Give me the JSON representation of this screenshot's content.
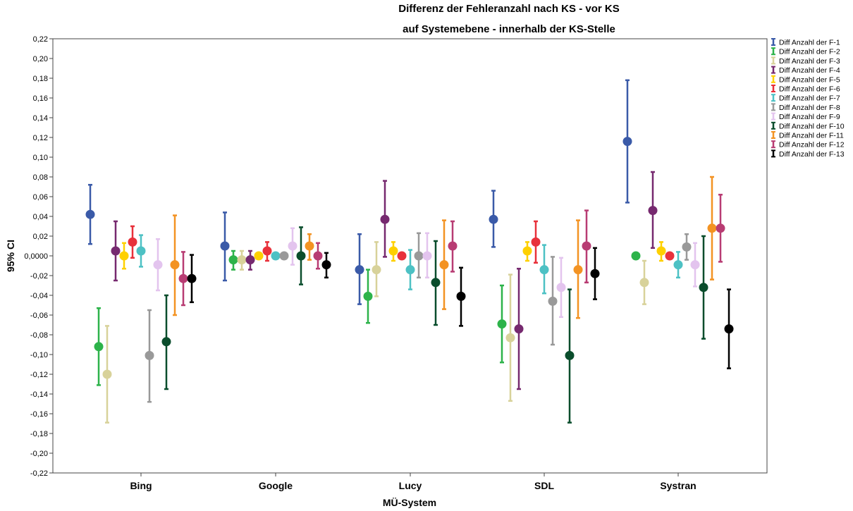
{
  "chart_data": {
    "type": "errorbar",
    "title": [
      "Differenz der Fehleranzahl nach KS - vor KS",
      "auf Systemebene - innerhalb der KS-Stelle"
    ],
    "xlabel": "MÜ-System",
    "ylabel": "95% CI",
    "ylim": [
      -0.22,
      0.22
    ],
    "y_ticks": [
      "0,22",
      "0,20",
      "0,18",
      "0,16",
      "0,14",
      "0,12",
      "0,10",
      "0,08",
      "0,06",
      "0,04",
      "0,02",
      "0,0000",
      "-0,02",
      "-0,04",
      "-0,06",
      "-0,08",
      "-0,10",
      "-0,12",
      "-0,14",
      "-0,16",
      "-0,18",
      "-0,20",
      "-0,22"
    ],
    "categories": [
      "Bing",
      "Google",
      "Lucy",
      "SDL",
      "Systran"
    ],
    "legend_position": "right",
    "series": [
      {
        "name": "Diff Anzahl der F-1",
        "color": "#3a5aa8",
        "mean": [
          0.042,
          0.01,
          -0.014,
          0.037,
          0.116
        ],
        "lower": [
          0.012,
          -0.025,
          -0.049,
          0.009,
          0.054
        ],
        "upper": [
          0.072,
          0.044,
          0.022,
          0.066,
          0.178
        ]
      },
      {
        "name": "Diff Anzahl der F-2",
        "color": "#2db34a",
        "mean": [
          -0.092,
          -0.004,
          -0.041,
          -0.069,
          0.0
        ],
        "lower": [
          -0.131,
          -0.014,
          -0.068,
          -0.108,
          0.0
        ],
        "upper": [
          -0.053,
          0.005,
          -0.014,
          -0.03,
          0.0
        ]
      },
      {
        "name": "Diff Anzahl der F-3",
        "color": "#d8d29a",
        "mean": [
          -0.12,
          -0.004,
          -0.014,
          -0.083,
          -0.027
        ],
        "lower": [
          -0.169,
          -0.014,
          -0.041,
          -0.147,
          -0.049
        ],
        "upper": [
          -0.071,
          0.005,
          0.014,
          -0.019,
          -0.005
        ]
      },
      {
        "name": "Diff Anzahl der F-4",
        "color": "#76296f",
        "mean": [
          0.005,
          -0.004,
          0.037,
          -0.074,
          0.046
        ],
        "lower": [
          -0.025,
          -0.014,
          -0.001,
          -0.135,
          0.008
        ],
        "upper": [
          0.035,
          0.005,
          0.076,
          -0.013,
          0.085
        ]
      },
      {
        "name": "Diff Anzahl der F-5",
        "color": "#fed000",
        "mean": [
          0.0,
          0.0,
          0.005,
          0.005,
          0.005
        ],
        "lower": [
          -0.013,
          0.0,
          -0.005,
          -0.005,
          -0.005
        ],
        "upper": [
          0.013,
          0.0,
          0.014,
          0.014,
          0.014
        ]
      },
      {
        "name": "Diff Anzahl der F-6",
        "color": "#e8313b",
        "mean": [
          0.014,
          0.005,
          0.0,
          0.014,
          0.0
        ],
        "lower": [
          -0.002,
          -0.005,
          0.0,
          -0.007,
          0.0
        ],
        "upper": [
          0.03,
          0.014,
          0.0,
          0.035,
          0.0
        ]
      },
      {
        "name": "Diff Anzahl der F-7",
        "color": "#4dc1c4",
        "mean": [
          0.005,
          0.0,
          -0.014,
          -0.014,
          -0.009
        ],
        "lower": [
          -0.011,
          0.0,
          -0.034,
          -0.038,
          -0.022
        ],
        "upper": [
          0.021,
          0.0,
          0.006,
          0.011,
          0.004
        ]
      },
      {
        "name": "Diff Anzahl der F-8",
        "color": "#999999",
        "mean": [
          -0.101,
          0.0,
          0.0,
          -0.046,
          0.009
        ],
        "lower": [
          -0.148,
          0.0,
          -0.022,
          -0.09,
          -0.004
        ],
        "upper": [
          -0.055,
          0.0,
          0.023,
          -0.001,
          0.022
        ]
      },
      {
        "name": "Diff Anzahl der F-9",
        "color": "#e3c4ee",
        "mean": [
          -0.009,
          0.01,
          0.0,
          -0.032,
          -0.009
        ],
        "lower": [
          -0.035,
          -0.009,
          -0.022,
          -0.062,
          -0.031
        ],
        "upper": [
          0.017,
          0.028,
          0.023,
          -0.002,
          0.013
        ]
      },
      {
        "name": "Diff Anzahl der F-10",
        "color": "#0a4d2c",
        "mean": [
          -0.087,
          0.0,
          -0.027,
          -0.101,
          -0.032
        ],
        "lower": [
          -0.135,
          -0.029,
          -0.07,
          -0.169,
          -0.084
        ],
        "upper": [
          -0.04,
          0.029,
          0.015,
          -0.034,
          0.02
        ]
      },
      {
        "name": "Diff Anzahl der F-11",
        "color": "#f39323",
        "mean": [
          -0.009,
          0.01,
          -0.009,
          -0.014,
          0.028
        ],
        "lower": [
          -0.06,
          -0.004,
          -0.054,
          -0.063,
          -0.024
        ],
        "upper": [
          0.041,
          0.022,
          0.036,
          0.036,
          0.08
        ]
      },
      {
        "name": "Diff Anzahl der F-12",
        "color": "#b83c73",
        "mean": [
          -0.023,
          0.0,
          0.01,
          0.01,
          0.028
        ],
        "lower": [
          -0.05,
          -0.013,
          -0.016,
          -0.027,
          -0.006
        ],
        "upper": [
          0.004,
          0.013,
          0.035,
          0.046,
          0.062
        ]
      },
      {
        "name": "Diff Anzahl der F-13",
        "color": "#000000",
        "mean": [
          -0.023,
          -0.009,
          -0.041,
          -0.018,
          -0.074
        ],
        "lower": [
          -0.047,
          -0.022,
          -0.071,
          -0.044,
          -0.114
        ],
        "upper": [
          0.001,
          0.003,
          -0.012,
          0.008,
          -0.034
        ]
      }
    ]
  }
}
